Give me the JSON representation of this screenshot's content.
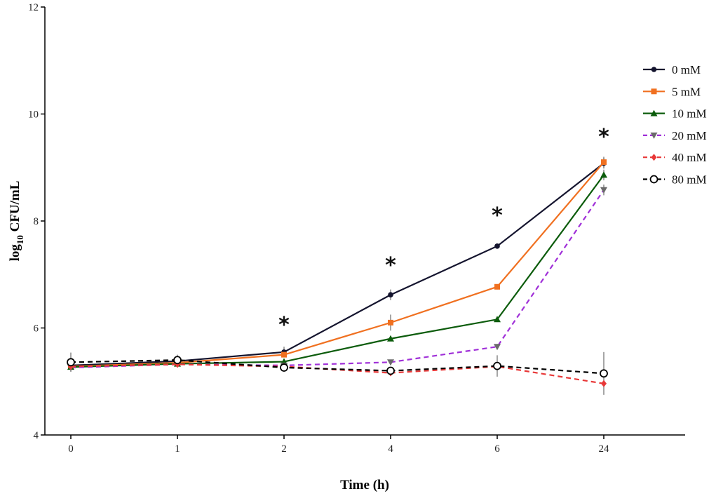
{
  "chart_data": {
    "type": "line",
    "title": "",
    "xlabel": "Time (h)",
    "ylabel_main": "log",
    "ylabel_sub": "10",
    "ylabel_rest": " CFU/mL",
    "categories": [
      "0",
      "1",
      "2",
      "4",
      "6",
      "24"
    ],
    "ylim": [
      4,
      12
    ],
    "yticks": [
      "4",
      "6",
      "8",
      "10",
      "12"
    ],
    "significance_marker": "*",
    "significance_at": [
      "2",
      "4",
      "6",
      "24"
    ],
    "series": [
      {
        "name": "0 mM",
        "color": "#14142e",
        "marker": "circle-filled",
        "dash": "solid",
        "values": [
          5.3,
          5.38,
          5.55,
          6.62,
          7.53,
          9.08
        ],
        "err": [
          0.05,
          0.05,
          0.1,
          0.1,
          0.05,
          0.1
        ]
      },
      {
        "name": "5 mM",
        "color": "#f07020",
        "marker": "square",
        "dash": "solid",
        "values": [
          5.28,
          5.35,
          5.5,
          6.1,
          6.77,
          9.1
        ],
        "err": [
          0.05,
          0.05,
          0.05,
          0.15,
          0.05,
          0.1
        ]
      },
      {
        "name": "10 mM",
        "color": "#0c5c0c",
        "marker": "triangle-up",
        "dash": "solid",
        "values": [
          5.27,
          5.33,
          5.37,
          5.8,
          6.16,
          8.86
        ],
        "err": [
          0.05,
          0.05,
          0.05,
          0.05,
          0.05,
          0.1
        ]
      },
      {
        "name": "20 mM",
        "color": "#a030d8",
        "marker": "triangle-down",
        "dash": "dashed",
        "values": [
          5.26,
          5.32,
          5.3,
          5.36,
          5.65,
          8.58
        ],
        "err": [
          0.05,
          0.05,
          0.05,
          0.05,
          0.05,
          0.1
        ]
      },
      {
        "name": "40 mM",
        "color": "#e83838",
        "marker": "diamond",
        "dash": "dashed",
        "values": [
          5.28,
          5.32,
          5.28,
          5.16,
          5.28,
          4.96
        ],
        "err": [
          0.05,
          0.05,
          0.05,
          0.05,
          0.05,
          0.05
        ]
      },
      {
        "name": "80 mM",
        "color": "#000000",
        "marker": "circle-open",
        "dash": "dashed",
        "values": [
          5.36,
          5.4,
          5.26,
          5.2,
          5.29,
          5.15
        ],
        "err": [
          0.18,
          0.1,
          0.05,
          0.05,
          0.2,
          0.4
        ]
      }
    ]
  }
}
